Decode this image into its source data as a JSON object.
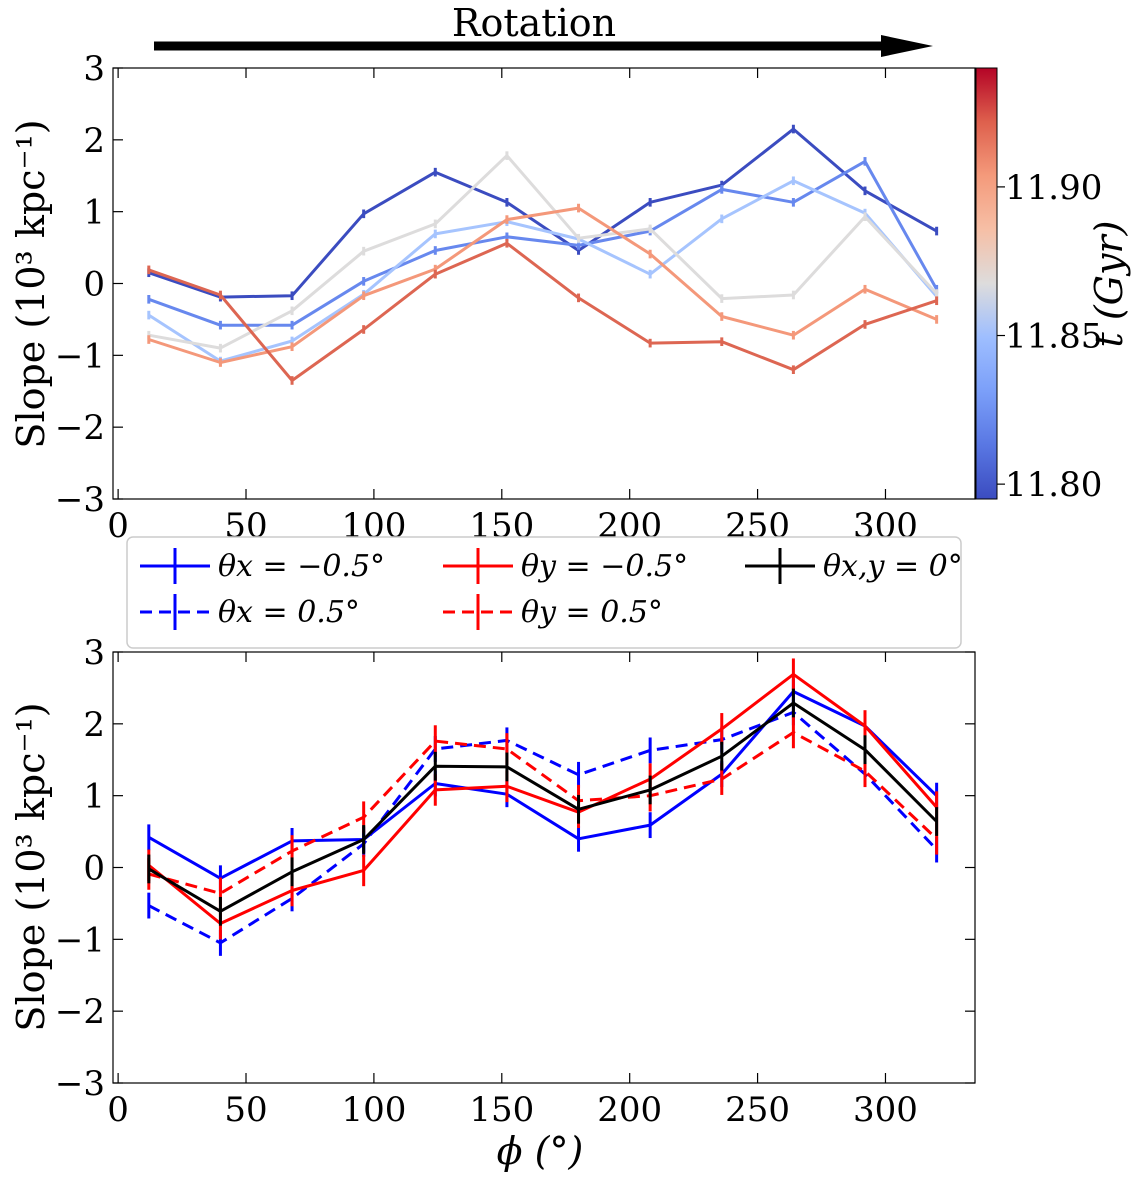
{
  "chart_data": [
    {
      "type": "line",
      "panel": "top",
      "title": "",
      "annotation": "Rotation",
      "xlabel": "",
      "ylabel": "Slope (10³ kpc⁻¹)",
      "xlim": [
        -2,
        335
      ],
      "ylim": [
        -3,
        3
      ],
      "xticks": [
        0,
        50,
        100,
        150,
        200,
        250,
        300
      ],
      "yticks": [
        -3,
        -2,
        -1,
        0,
        1,
        2,
        3
      ],
      "x": [
        12,
        40,
        68,
        96,
        124,
        152,
        180,
        208,
        236,
        264,
        292,
        320
      ],
      "colorbar": {
        "label": "t (Gyr)",
        "range": [
          11.795,
          11.94
        ],
        "ticks": [
          11.8,
          11.85,
          11.9
        ],
        "tick_labels": [
          "11.80",
          "11.85",
          "11.90"
        ]
      },
      "series": [
        {
          "name": "t=11.800",
          "t": 11.8,
          "color": "#3b4cc0",
          "values": [
            0.15,
            -0.19,
            -0.17,
            0.97,
            1.55,
            1.13,
            0.46,
            1.13,
            1.37,
            2.15,
            1.29,
            0.73
          ]
        },
        {
          "name": "t=11.815",
          "t": 11.815,
          "color": "#6788ee",
          "values": [
            -0.22,
            -0.58,
            -0.58,
            0.03,
            0.46,
            0.65,
            0.53,
            0.73,
            1.31,
            1.13,
            1.7,
            -0.08
          ]
        },
        {
          "name": "t=11.835",
          "t": 11.835,
          "color": "#a6c4fe",
          "values": [
            -0.44,
            -1.08,
            -0.8,
            -0.15,
            0.69,
            0.86,
            0.62,
            0.13,
            0.9,
            1.43,
            0.98,
            -0.18
          ]
        },
        {
          "name": "t=11.865",
          "t": 11.865,
          "color": "#dddcdc",
          "values": [
            -0.72,
            -0.9,
            -0.38,
            0.45,
            0.83,
            1.78,
            0.63,
            0.76,
            -0.21,
            -0.16,
            0.93,
            -0.14
          ]
        },
        {
          "name": "t=11.895",
          "t": 11.895,
          "color": "#f4987a",
          "values": [
            -0.78,
            -1.1,
            -0.88,
            -0.17,
            0.2,
            0.89,
            1.05,
            0.41,
            -0.46,
            -0.72,
            -0.08,
            -0.5
          ]
        },
        {
          "name": "t=11.920",
          "t": 11.92,
          "color": "#dd6652",
          "values": [
            0.19,
            -0.16,
            -1.35,
            -0.64,
            0.13,
            0.56,
            -0.2,
            -0.83,
            -0.81,
            -1.2,
            -0.57,
            -0.24
          ]
        }
      ]
    },
    {
      "type": "line",
      "panel": "bottom",
      "title": "",
      "xlabel": "ϕ (°)",
      "ylabel": "Slope (10³ kpc⁻¹)",
      "xlim": [
        -2,
        335
      ],
      "ylim": [
        -3,
        3
      ],
      "xticks": [
        0,
        50,
        100,
        150,
        200,
        250,
        300
      ],
      "yticks": [
        -3,
        -2,
        -1,
        0,
        1,
        2,
        3
      ],
      "x": [
        12,
        40,
        68,
        96,
        124,
        152,
        180,
        208,
        236,
        264,
        292,
        320
      ],
      "series": [
        {
          "name": "θx = −0.5°",
          "color": "#0000ff",
          "dash": false,
          "values": [
            0.42,
            -0.15,
            0.37,
            0.39,
            1.17,
            1.02,
            0.4,
            0.59,
            1.3,
            2.45,
            1.97,
            1.0
          ],
          "err": 0.18
        },
        {
          "name": "θx = 0.5°",
          "color": "#0000ff",
          "dash": true,
          "values": [
            -0.53,
            -1.05,
            -0.43,
            0.33,
            1.65,
            1.77,
            1.29,
            1.63,
            1.78,
            2.16,
            1.3,
            0.25
          ],
          "err": 0.18
        },
        {
          "name": "θy = −0.5°",
          "color": "#ff0000",
          "dash": false,
          "values": [
            0.03,
            -0.78,
            -0.32,
            -0.04,
            1.08,
            1.13,
            0.77,
            1.23,
            1.93,
            2.69,
            1.97,
            0.84
          ],
          "err": 0.22
        },
        {
          "name": "θy = 0.5°",
          "color": "#ff0000",
          "dash": true,
          "values": [
            -0.09,
            -0.36,
            0.23,
            0.7,
            1.76,
            1.65,
            0.93,
            1.0,
            1.23,
            1.88,
            1.34,
            0.4
          ],
          "err": 0.22
        },
        {
          "name": "θx,y = 0°",
          "color": "#000000",
          "dash": false,
          "values": [
            -0.02,
            -0.61,
            -0.06,
            0.39,
            1.41,
            1.4,
            0.81,
            1.08,
            1.55,
            2.29,
            1.64,
            0.64
          ],
          "err": 0.2
        }
      ]
    }
  ]
}
